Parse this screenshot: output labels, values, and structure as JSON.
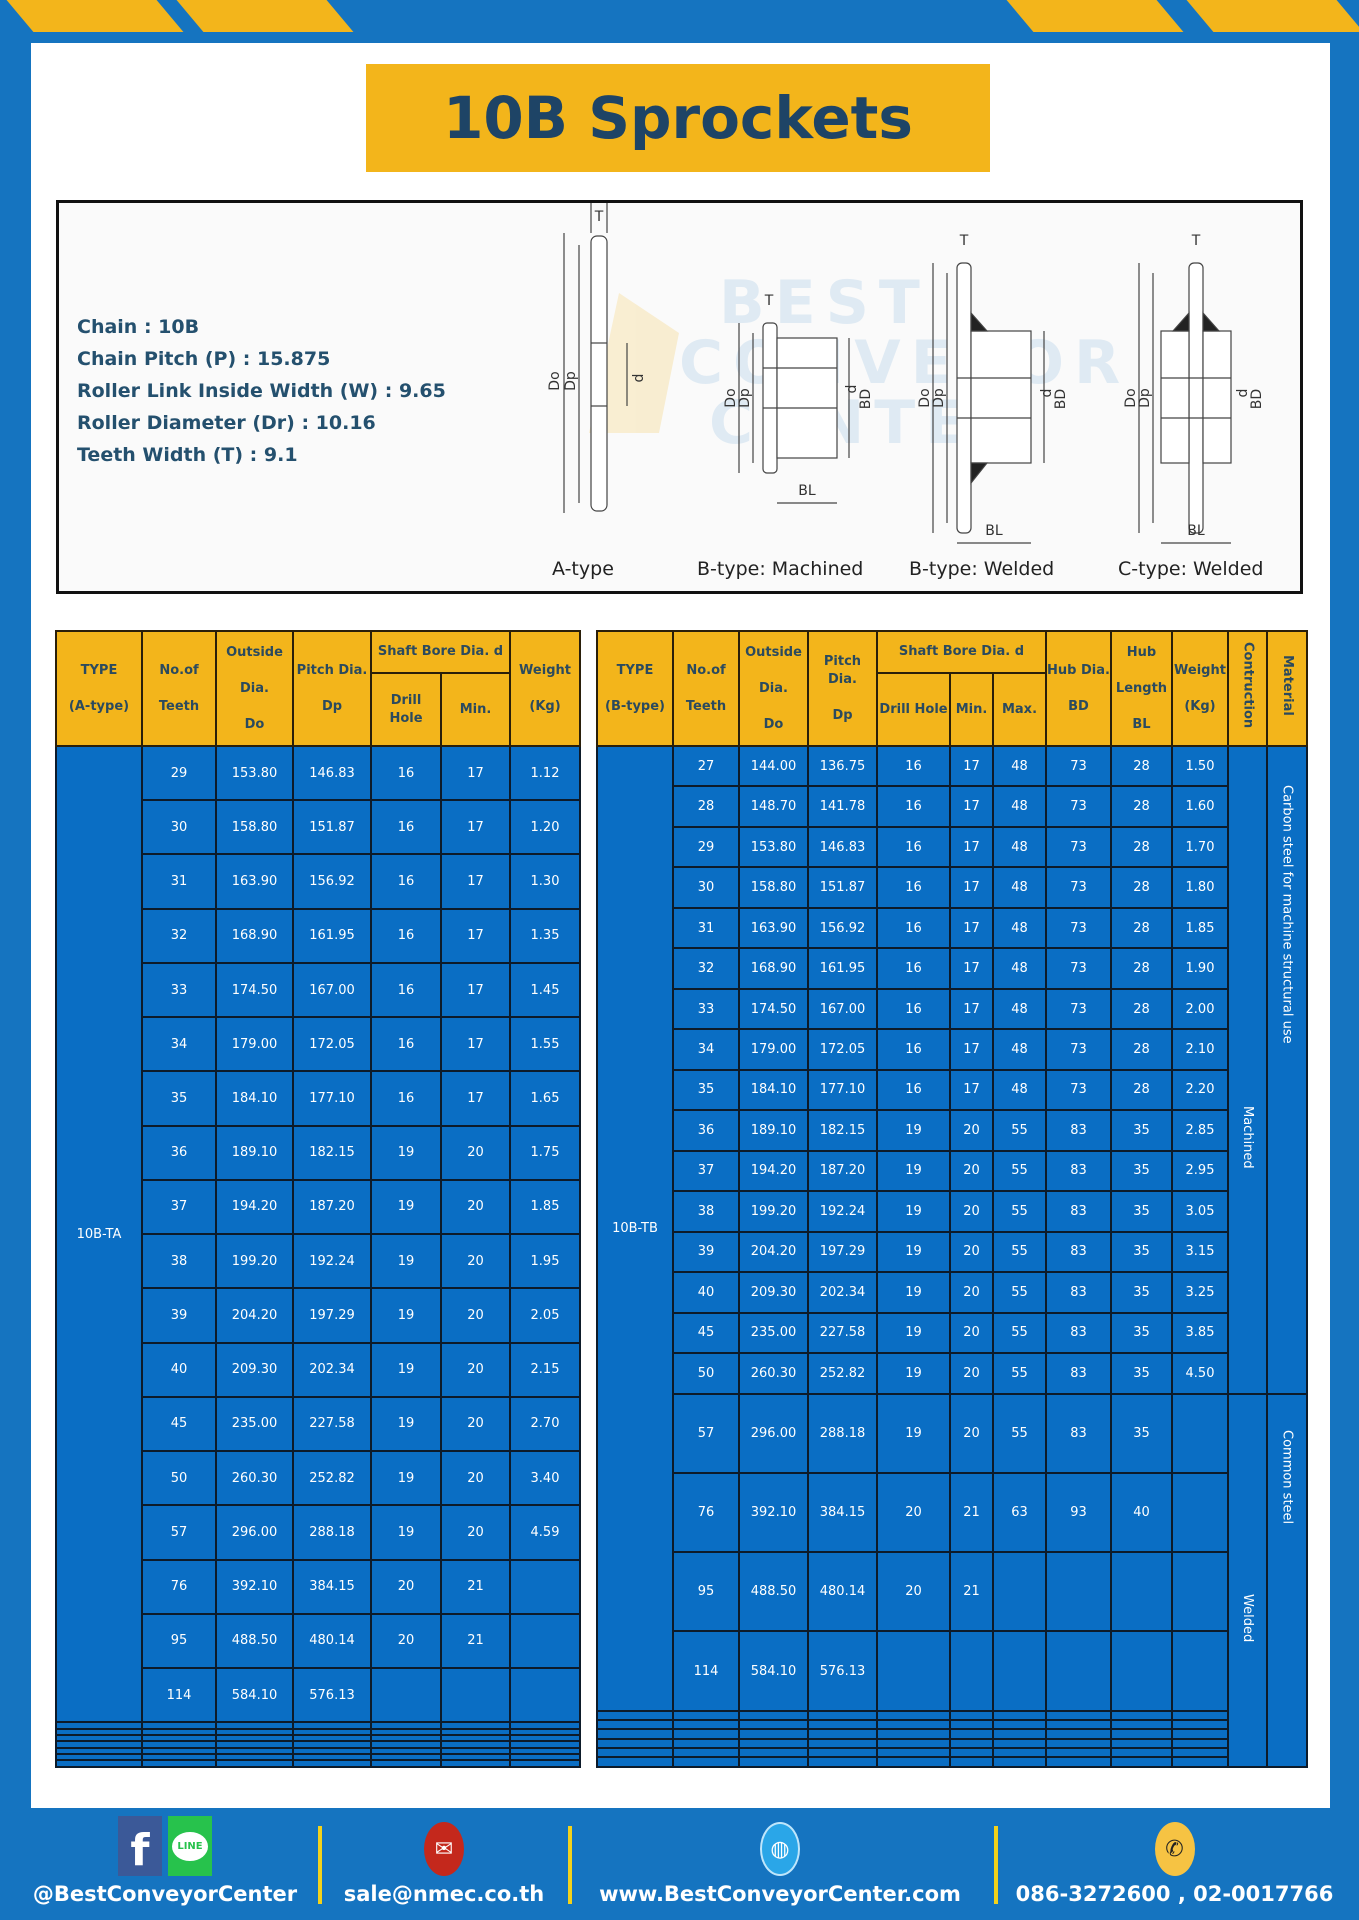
{
  "title": "10B Sprockets",
  "specs": [
    "Chain  :  10B",
    "Chain Pitch (P)  :  15.875",
    "Roller Link Inside Width (W) : 9.65",
    "Roller Diameter (Dr) : 10.16",
    "Teeth Width (T)  :  9.1"
  ],
  "diagram": {
    "captions": [
      "A-type",
      "B-type: Machined",
      "B-type: Welded",
      "C-type: Welded"
    ],
    "labels": {
      "t": "T",
      "do": "Do",
      "dp": "Dp",
      "d": "d",
      "bd": "BD",
      "bl": "BL"
    },
    "watermark": "BEST CONVEYOR CENTER"
  },
  "table_a": {
    "headers": {
      "type": [
        "TYPE",
        "(A-type)"
      ],
      "teeth": [
        "No.of",
        "Teeth"
      ],
      "outside": [
        "Outside",
        "Dia.",
        "Do"
      ],
      "pitch": [
        "Pitch Dia.",
        "Dp"
      ],
      "bore": "Shaft Bore Dia. d",
      "drill": "Drill Hole",
      "min": "Min.",
      "weight": [
        "Weight",
        "(Kg)"
      ]
    },
    "type_value": "10B-TA",
    "rows": [
      [
        "29",
        "153.80",
        "146.83",
        "16",
        "17",
        "1.12"
      ],
      [
        "30",
        "158.80",
        "151.87",
        "16",
        "17",
        "1.20"
      ],
      [
        "31",
        "163.90",
        "156.92",
        "16",
        "17",
        "1.30"
      ],
      [
        "32",
        "168.90",
        "161.95",
        "16",
        "17",
        "1.35"
      ],
      [
        "33",
        "174.50",
        "167.00",
        "16",
        "17",
        "1.45"
      ],
      [
        "34",
        "179.00",
        "172.05",
        "16",
        "17",
        "1.55"
      ],
      [
        "35",
        "184.10",
        "177.10",
        "16",
        "17",
        "1.65"
      ],
      [
        "36",
        "189.10",
        "182.15",
        "19",
        "20",
        "1.75"
      ],
      [
        "37",
        "194.20",
        "187.20",
        "19",
        "20",
        "1.85"
      ],
      [
        "38",
        "199.20",
        "192.24",
        "19",
        "20",
        "1.95"
      ],
      [
        "39",
        "204.20",
        "197.29",
        "19",
        "20",
        "2.05"
      ],
      [
        "40",
        "209.30",
        "202.34",
        "19",
        "20",
        "2.15"
      ],
      [
        "45",
        "235.00",
        "227.58",
        "19",
        "20",
        "2.70"
      ],
      [
        "50",
        "260.30",
        "252.82",
        "19",
        "20",
        "3.40"
      ],
      [
        "57",
        "296.00",
        "288.18",
        "19",
        "20",
        "4.59"
      ],
      [
        "76",
        "392.10",
        "384.15",
        "20",
        "21",
        ""
      ],
      [
        "95",
        "488.50",
        "480.14",
        "20",
        "21",
        ""
      ],
      [
        "114",
        "584.10",
        "576.13",
        "",
        "",
        ""
      ]
    ]
  },
  "table_b": {
    "headers": {
      "type": [
        "TYPE",
        "(B-type)"
      ],
      "teeth": [
        "No.of",
        "Teeth"
      ],
      "outside": [
        "Outside",
        "Dia.",
        "Do"
      ],
      "pitch": [
        "Pitch Dia.",
        "Dp"
      ],
      "bore": "Shaft Bore Dia. d",
      "drill": "Drill Hole",
      "min": "Min.",
      "max": "Max.",
      "hub_dia": [
        "Hub Dia.",
        "BD"
      ],
      "hub_len": [
        "Hub",
        "Length",
        "BL"
      ],
      "weight": [
        "Weight",
        "(Kg)"
      ],
      "construction": "Contruction",
      "material": "Material"
    },
    "type_value": "10B-TB",
    "construction": [
      "Machined",
      "Welded"
    ],
    "material": [
      "Carbon steel for  machine structural use",
      "Common steel"
    ],
    "rows": [
      [
        "27",
        "144.00",
        "136.75",
        "16",
        "17",
        "48",
        "73",
        "28",
        "1.50"
      ],
      [
        "28",
        "148.70",
        "141.78",
        "16",
        "17",
        "48",
        "73",
        "28",
        "1.60"
      ],
      [
        "29",
        "153.80",
        "146.83",
        "16",
        "17",
        "48",
        "73",
        "28",
        "1.70"
      ],
      [
        "30",
        "158.80",
        "151.87",
        "16",
        "17",
        "48",
        "73",
        "28",
        "1.80"
      ],
      [
        "31",
        "163.90",
        "156.92",
        "16",
        "17",
        "48",
        "73",
        "28",
        "1.85"
      ],
      [
        "32",
        "168.90",
        "161.95",
        "16",
        "17",
        "48",
        "73",
        "28",
        "1.90"
      ],
      [
        "33",
        "174.50",
        "167.00",
        "16",
        "17",
        "48",
        "73",
        "28",
        "2.00"
      ],
      [
        "34",
        "179.00",
        "172.05",
        "16",
        "17",
        "48",
        "73",
        "28",
        "2.10"
      ],
      [
        "35",
        "184.10",
        "177.10",
        "16",
        "17",
        "48",
        "73",
        "28",
        "2.20"
      ],
      [
        "36",
        "189.10",
        "182.15",
        "19",
        "20",
        "55",
        "83",
        "35",
        "2.85"
      ],
      [
        "37",
        "194.20",
        "187.20",
        "19",
        "20",
        "55",
        "83",
        "35",
        "2.95"
      ],
      [
        "38",
        "199.20",
        "192.24",
        "19",
        "20",
        "55",
        "83",
        "35",
        "3.05"
      ],
      [
        "39",
        "204.20",
        "197.29",
        "19",
        "20",
        "55",
        "83",
        "35",
        "3.15"
      ],
      [
        "40",
        "209.30",
        "202.34",
        "19",
        "20",
        "55",
        "83",
        "35",
        "3.25"
      ],
      [
        "45",
        "235.00",
        "227.58",
        "19",
        "20",
        "55",
        "83",
        "35",
        "3.85"
      ],
      [
        "50",
        "260.30",
        "252.82",
        "19",
        "20",
        "55",
        "83",
        "35",
        "4.50"
      ],
      [
        "57",
        "296.00",
        "288.18",
        "19",
        "20",
        "55",
        "83",
        "35",
        ""
      ],
      [
        "76",
        "392.10",
        "384.15",
        "20",
        "21",
        "63",
        "93",
        "40",
        ""
      ],
      [
        "95",
        "488.50",
        "480.14",
        "20",
        "21",
        "",
        "",
        "",
        ""
      ],
      [
        "114",
        "584.10",
        "576.13",
        "",
        "",
        "",
        "",
        "",
        ""
      ]
    ]
  },
  "footer": {
    "social": "@BestConveyorCenter",
    "email": "sale@nmec.co.th",
    "website": "www.BestConveyorCenter.com",
    "phone": "086-3272600 , 02-0017766",
    "line_label": "LINE",
    "facebook_label": "f"
  },
  "colors": {
    "blue": "#1574c0",
    "cell_blue": "#0a6ec4",
    "yellow": "#f3b51b",
    "navy": "#1e4466"
  }
}
